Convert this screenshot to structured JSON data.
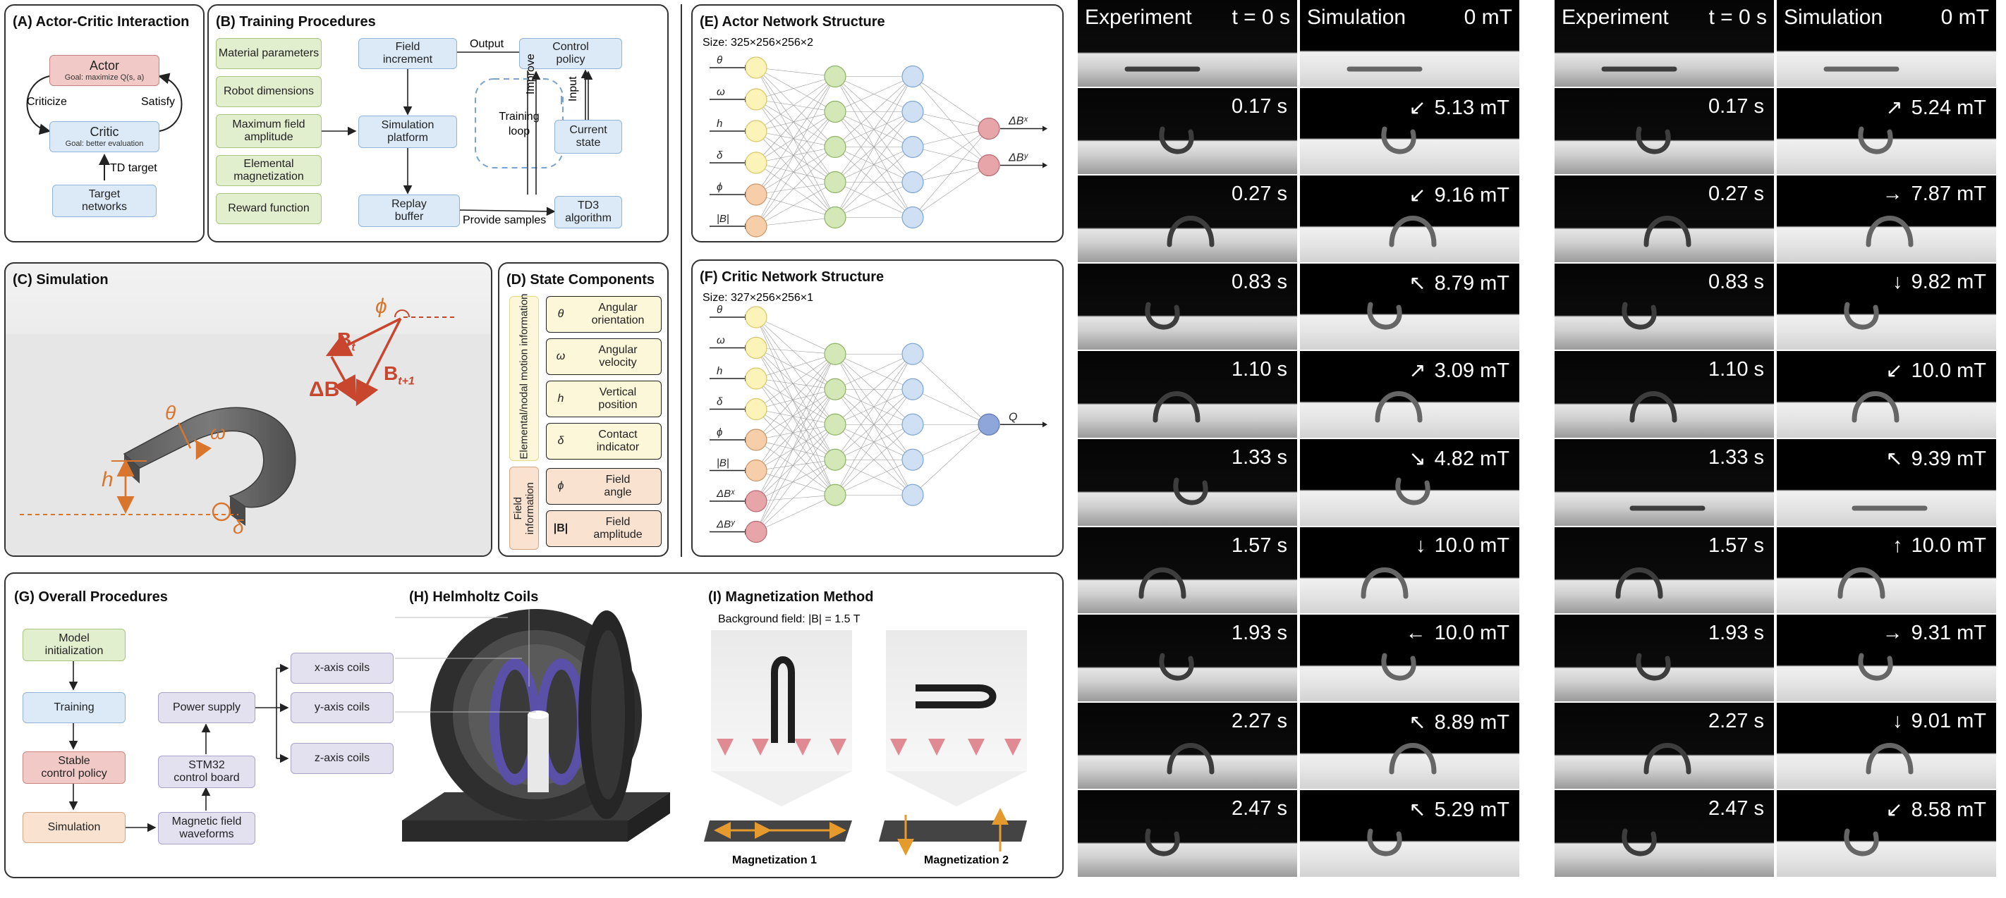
{
  "panelA": {
    "title": "(A) Actor-Critic Interaction",
    "actor": "Actor",
    "actor_goal": "Goal: maximize Q(s, a)",
    "critic": "Critic",
    "critic_goal": "Goal: better evaluation",
    "criticize": "Criticize",
    "satisfy": "Satisfy",
    "td_target": "TD target",
    "target_networks_1": "Target",
    "target_networks_2": "networks"
  },
  "panelB": {
    "title": "(B) Training Procedures",
    "inputs": [
      "Material parameters",
      "Robot dimensions",
      "Maximum field amplitude",
      "Elemental magnetization",
      "Reward function"
    ],
    "field_increment_1": "Field",
    "field_increment_2": "increment",
    "sim_platform_1": "Simulation",
    "sim_platform_2": "platform",
    "replay_1": "Replay",
    "replay_2": "buffer",
    "control_1": "Control",
    "control_2": "policy",
    "state_1": "Current",
    "state_2": "state",
    "td3_1": "TD3",
    "td3_2": "algorithm",
    "loop_1": "Training",
    "loop_2": "loop",
    "output": "Output",
    "improve": "Improve",
    "input": "Input",
    "provide": "Provide samples"
  },
  "panelC": {
    "title": "(C) Simulation",
    "phi": "ϕ",
    "bt": "B",
    "bt_sub": "t",
    "bt1": "B",
    "bt1_sub": "t+1",
    "delta_b": "ΔB",
    "theta": "θ",
    "omega": "ω",
    "h": "h",
    "delta": "δ"
  },
  "panelD": {
    "title": "(D) State Components",
    "group1": "Elemental/nodal motion information",
    "group2": "Field information",
    "items": [
      {
        "sym": "θ",
        "label1": "Angular",
        "label2": "orientation"
      },
      {
        "sym": "ω",
        "label1": "Angular",
        "label2": "velocity"
      },
      {
        "sym": "h",
        "label1": "Vertical",
        "label2": "position"
      },
      {
        "sym": "δ",
        "label1": "Contact",
        "label2": "indicator"
      },
      {
        "sym": "ϕ",
        "label1": "Field",
        "label2": "angle"
      },
      {
        "sym": "|B|",
        "label1": "Field",
        "label2": "amplitude"
      }
    ]
  },
  "panelE": {
    "title": "(E) Actor Network Structure",
    "size": "Size: 325×256×256×2",
    "inputs": [
      "θ",
      "ω",
      "h",
      "δ",
      "ϕ",
      "|B|"
    ],
    "outputs": [
      "ΔBˣ",
      "ΔBʸ"
    ]
  },
  "panelF": {
    "title": "(F) Critic Network Structure",
    "size": "Size: 327×256×256×1",
    "inputs": [
      "θ",
      "ω",
      "h",
      "δ",
      "ϕ",
      "|B|",
      "ΔBˣ",
      "ΔBʸ"
    ],
    "output": "Q"
  },
  "panelG": {
    "title": "(G) Overall Procedures",
    "model_1": "Model",
    "model_2": "initialization",
    "training": "Training",
    "stable_1": "Stable",
    "stable_2": "control policy",
    "simulation": "Simulation",
    "waveforms_1": "Magnetic field",
    "waveforms_2": "waveforms",
    "stm32_1": "STM32",
    "stm32_2": "control board",
    "power": "Power supply",
    "xcoil": "x-axis coils",
    "ycoil": "y-axis coils",
    "zcoil": "z-axis coils"
  },
  "panelH": {
    "title": "(H) Helmholtz Coils"
  },
  "panelI": {
    "title": "(I) Magnetization Method",
    "bg_field": "Background field: |B| = 1.5 T",
    "mag1": "Magnetization 1",
    "mag2": "Magnetization 2"
  },
  "grid1": {
    "hdr_exp": "Experiment",
    "hdr_t0": "t = 0 s",
    "hdr_sim": "Simulation",
    "hdr_b0": "0 mT",
    "rows": [
      {
        "t": "0.17 s",
        "b": "5.13 mT",
        "arrow": "↙"
      },
      {
        "t": "0.27 s",
        "b": "9.16 mT",
        "arrow": "↙"
      },
      {
        "t": "0.83 s",
        "b": "8.79 mT",
        "arrow": "↖"
      },
      {
        "t": "1.10 s",
        "b": "3.09 mT",
        "arrow": "↗"
      },
      {
        "t": "1.33 s",
        "b": "4.82 mT",
        "arrow": "↘"
      },
      {
        "t": "1.57 s",
        "b": "10.0 mT",
        "arrow": "↓"
      },
      {
        "t": "1.93 s",
        "b": "10.0 mT",
        "arrow": "←"
      },
      {
        "t": "2.27 s",
        "b": "8.89 mT",
        "arrow": "↖"
      },
      {
        "t": "2.47 s",
        "b": "5.29 mT",
        "arrow": "↖"
      }
    ]
  },
  "grid2": {
    "hdr_exp": "Experiment",
    "hdr_t0": "t = 0 s",
    "hdr_sim": "Simulation",
    "hdr_b0": "0 mT",
    "rows": [
      {
        "t": "0.17 s",
        "b": "5.24 mT",
        "arrow": "↗"
      },
      {
        "t": "0.27 s",
        "b": "7.87 mT",
        "arrow": "→"
      },
      {
        "t": "0.83 s",
        "b": "9.82 mT",
        "arrow": "↓"
      },
      {
        "t": "1.10 s",
        "b": "10.0 mT",
        "arrow": "↙"
      },
      {
        "t": "1.33 s",
        "b": "9.39 mT",
        "arrow": "↖"
      },
      {
        "t": "1.57 s",
        "b": "10.0 mT",
        "arrow": "↑"
      },
      {
        "t": "1.93 s",
        "b": "9.31 mT",
        "arrow": "→"
      },
      {
        "t": "2.27 s",
        "b": "9.01 mT",
        "arrow": "↓"
      },
      {
        "t": "2.47 s",
        "b": "8.58 mT",
        "arrow": "↙"
      }
    ]
  }
}
